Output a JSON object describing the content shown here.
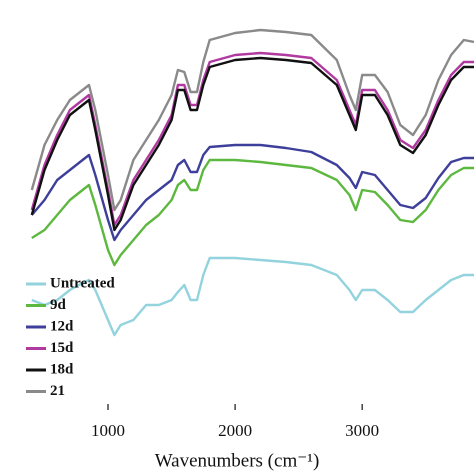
{
  "chart_data": {
    "type": "line",
    "xlabel": "Wavenumbers (cm⁻¹)",
    "x": [
      400,
      500,
      600,
      700,
      800,
      850,
      900,
      1000,
      1050,
      1100,
      1200,
      1300,
      1400,
      1500,
      1550,
      1600,
      1650,
      1700,
      1750,
      1800,
      2000,
      2200,
      2400,
      2600,
      2800,
      2900,
      2950,
      3000,
      3100,
      3200,
      3300,
      3400,
      3500,
      3600,
      3700,
      3800,
      3880
    ],
    "xlim": [
      150,
      3880
    ],
    "xticks": [
      1000,
      2000,
      3000
    ],
    "ylim": [
      0,
      410
    ],
    "series": [
      {
        "name": "Untreated",
        "color": "#93d3de",
        "values": [
          110,
          105,
          110,
          120,
          127,
          130,
          120,
          90,
          75,
          85,
          90,
          105,
          105,
          110,
          118,
          125,
          110,
          110,
          135,
          152,
          152,
          150,
          148,
          145,
          135,
          120,
          110,
          120,
          120,
          110,
          98,
          98,
          110,
          120,
          130,
          135,
          135
        ]
      },
      {
        "name": "9d",
        "color": "#5db83f",
        "values": [
          172,
          180,
          195,
          210,
          220,
          225,
          205,
          160,
          145,
          155,
          170,
          185,
          195,
          210,
          225,
          230,
          220,
          220,
          240,
          250,
          250,
          248,
          245,
          242,
          230,
          215,
          200,
          220,
          218,
          205,
          190,
          188,
          200,
          220,
          235,
          242,
          242
        ]
      },
      {
        "name": "12d",
        "color": "#3e3f9b",
        "values": [
          195,
          210,
          230,
          240,
          250,
          255,
          235,
          190,
          170,
          180,
          195,
          210,
          220,
          230,
          245,
          250,
          238,
          238,
          255,
          263,
          265,
          265,
          262,
          258,
          245,
          232,
          222,
          238,
          235,
          220,
          205,
          202,
          212,
          232,
          248,
          252,
          252
        ]
      },
      {
        "name": "15d",
        "color": "#b03a9f",
        "values": [
          200,
          245,
          275,
          300,
          310,
          315,
          285,
          220,
          185,
          195,
          230,
          250,
          270,
          295,
          325,
          325,
          305,
          305,
          330,
          348,
          355,
          357,
          355,
          352,
          330,
          300,
          285,
          320,
          320,
          300,
          270,
          262,
          280,
          310,
          335,
          348,
          348
        ]
      },
      {
        "name": "18d",
        "color": "#111111",
        "values": [
          195,
          240,
          270,
          295,
          305,
          310,
          280,
          215,
          180,
          190,
          225,
          245,
          265,
          290,
          320,
          320,
          300,
          300,
          325,
          343,
          350,
          352,
          350,
          347,
          325,
          295,
          280,
          315,
          315,
          295,
          265,
          257,
          275,
          305,
          330,
          343,
          343
        ]
      },
      {
        "name": "21",
        "color": "#8a8a8a",
        "values": [
          220,
          265,
          290,
          310,
          320,
          325,
          300,
          235,
          200,
          210,
          250,
          270,
          290,
          315,
          340,
          338,
          318,
          318,
          348,
          370,
          377,
          380,
          378,
          375,
          350,
          315,
          300,
          335,
          335,
          318,
          285,
          275,
          295,
          330,
          355,
          370,
          368
        ]
      }
    ]
  }
}
